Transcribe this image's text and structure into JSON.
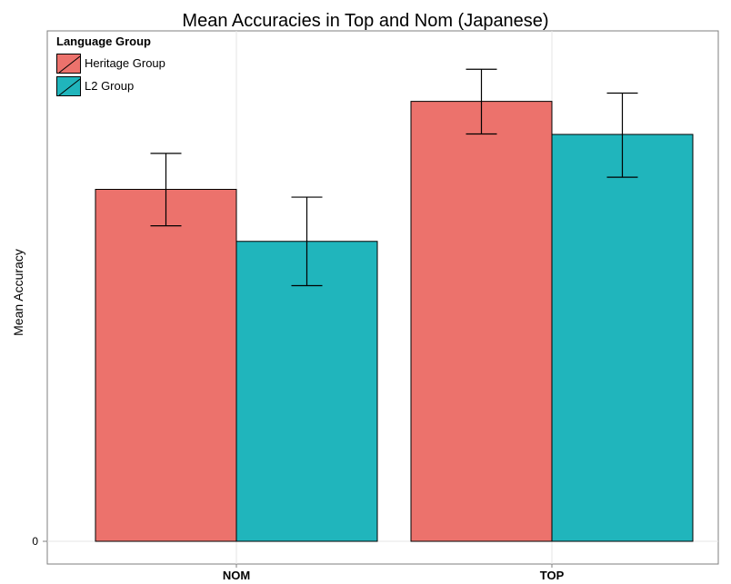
{
  "chart_data": {
    "type": "bar",
    "title": "Mean Accuracies in Top and Nom (Japanese)",
    "xlabel": "",
    "ylabel": "Mean Accuracy",
    "categories": [
      "NOM",
      "TOP"
    ],
    "y_tick_labels": [
      "0"
    ],
    "ylim": [
      0,
      1.05
    ],
    "series": [
      {
        "name": "Heritage Group",
        "color": "#EC726C",
        "values": [
          0.724,
          0.905
        ],
        "error_low": [
          0.649,
          0.838
        ],
        "error_high": [
          0.798,
          0.971
        ]
      },
      {
        "name": "L2 Group",
        "color": "#20B5BC",
        "values": [
          0.617,
          0.837
        ],
        "error_low": [
          0.526,
          0.749
        ],
        "error_high": [
          0.708,
          0.922
        ]
      }
    ],
    "grid": true,
    "legend_title": "Language Group",
    "legend_position": "top-left"
  }
}
